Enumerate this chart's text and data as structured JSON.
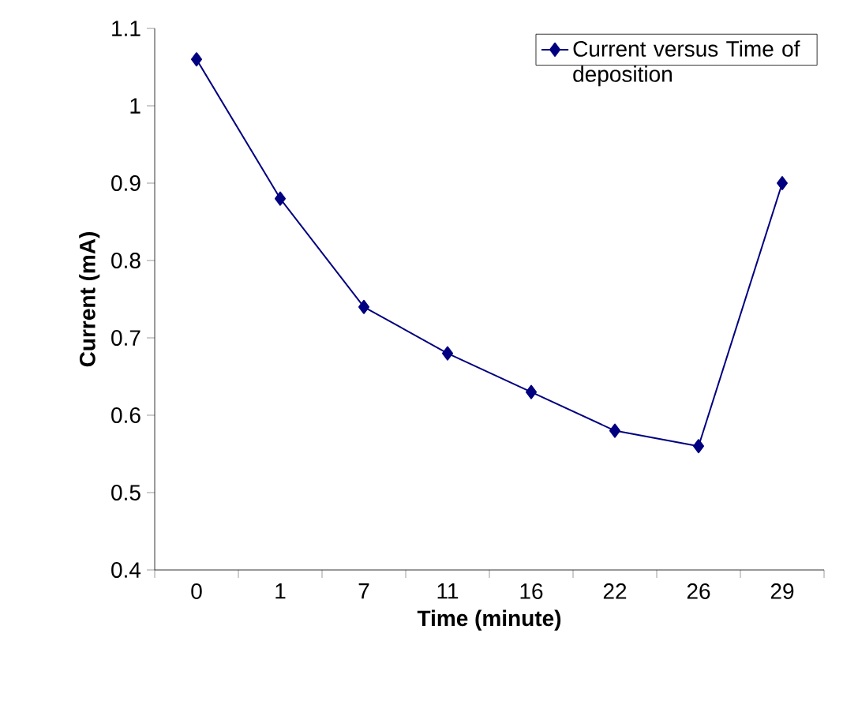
{
  "chart_data": {
    "type": "line",
    "xlabel": "Time (minute)",
    "ylabel": "Current (mA)",
    "categories": [
      "0",
      "1",
      "7",
      "11",
      "16",
      "22",
      "26",
      "29"
    ],
    "series": [
      {
        "name": "Current versus Time of deposition",
        "color": "#000080",
        "values": [
          1.06,
          0.88,
          0.74,
          0.68,
          0.63,
          0.58,
          0.56,
          0.9
        ]
      }
    ],
    "ylim": [
      0.4,
      1.1
    ],
    "yticks": [
      0.4,
      0.5,
      0.6,
      0.7,
      0.8,
      0.9,
      1,
      1.1
    ],
    "marker": "diamond",
    "line_style": "solid",
    "legend": "top right",
    "grid": false
  }
}
